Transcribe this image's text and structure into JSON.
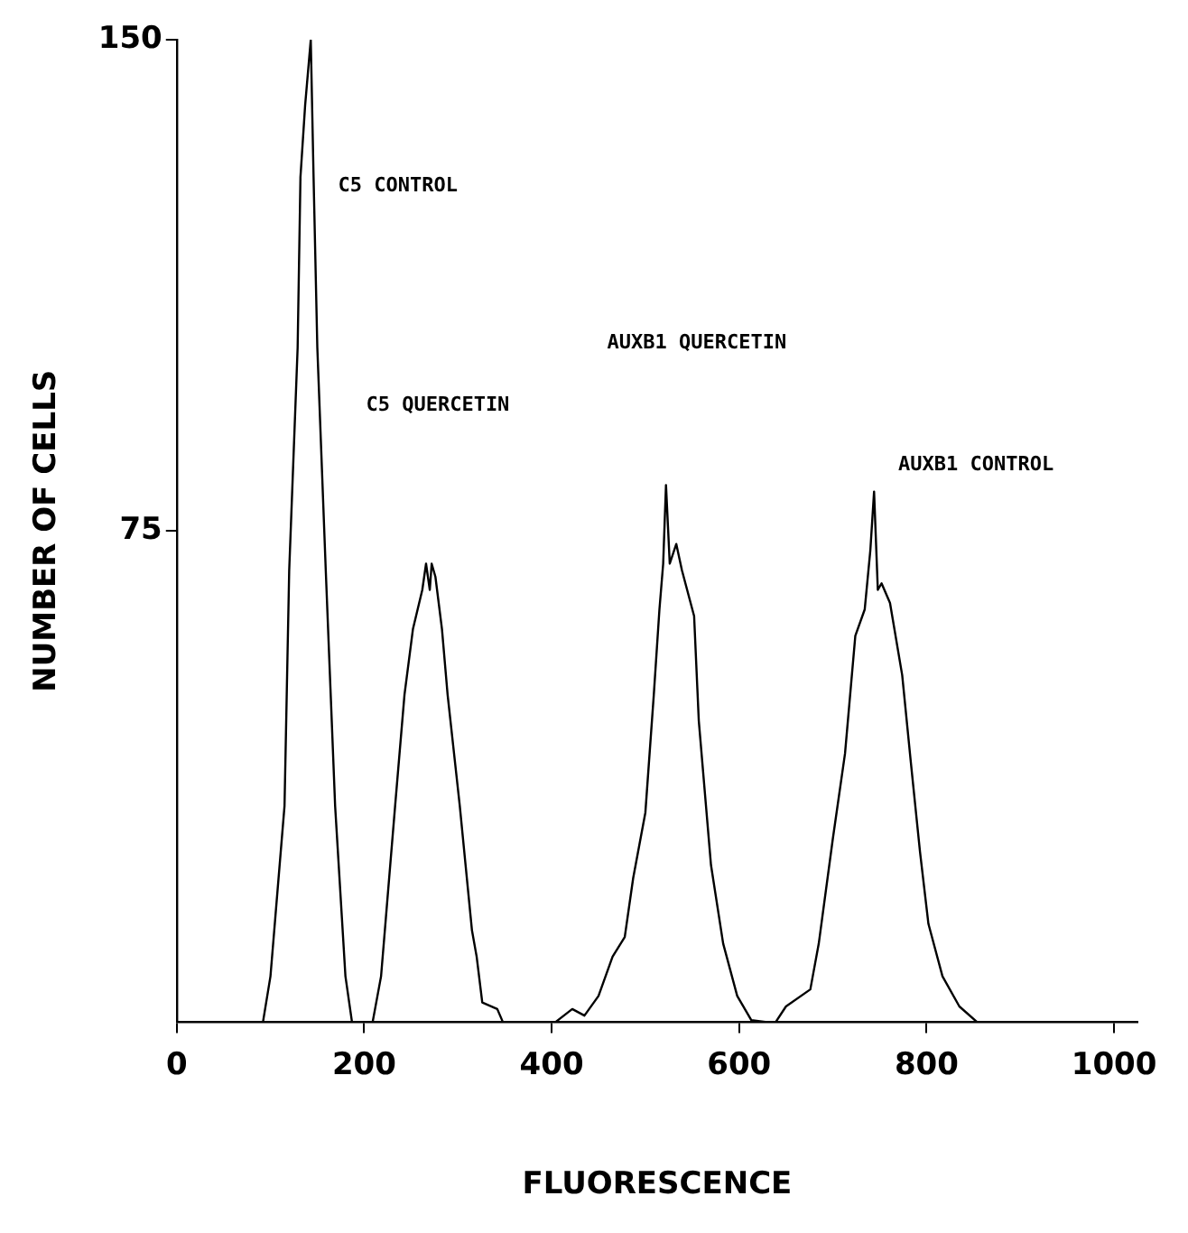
{
  "chart_data": {
    "type": "line",
    "xlabel": "FLUORESCENCE",
    "ylabel": "NUMBER OF CELLS",
    "marker": "none",
    "grid": false,
    "x": [
      0,
      92,
      100,
      115,
      120,
      129,
      132,
      137,
      143,
      146,
      150,
      159,
      169,
      180,
      187,
      209,
      218,
      233,
      243,
      252,
      262,
      266,
      270,
      272,
      276,
      283,
      289,
      302,
      315,
      320,
      326,
      342,
      348,
      404,
      422,
      435,
      450,
      465,
      478,
      487,
      500,
      509,
      515,
      519,
      522,
      526,
      533,
      539,
      552,
      557,
      570,
      583,
      598,
      613,
      630,
      639,
      650,
      676,
      685,
      700,
      713,
      724,
      734,
      740,
      744,
      748,
      752,
      761,
      774,
      783,
      793,
      802,
      817,
      835,
      854,
      1000
    ],
    "series": [
      {
        "color": "#000000",
        "values": [
          0,
          0,
          7,
          33,
          69,
          103,
          129,
          140,
          150,
          129,
          103,
          69,
          33,
          7,
          0,
          0,
          7,
          33,
          50,
          60,
          66,
          70,
          66,
          70,
          68,
          60,
          50,
          33,
          14,
          10,
          3,
          2,
          0,
          0,
          2,
          1,
          4,
          10,
          13,
          22,
          32,
          50,
          63,
          70,
          82,
          70,
          73,
          69,
          62,
          46,
          24,
          12,
          4,
          0.3,
          0,
          0,
          2.4,
          5,
          12,
          28,
          41,
          59,
          63,
          72,
          81,
          66,
          67,
          64,
          53,
          40,
          26,
          15,
          7,
          2.4,
          0,
          0
        ]
      }
    ],
    "xlim": [
      0,
      1025
    ],
    "ylim": [
      0,
      150
    ],
    "xticks": [
      0,
      200,
      400,
      600,
      800,
      1000
    ],
    "yticks": [
      75,
      150
    ],
    "annotations": [
      "C5 CONTROL",
      "C5 QUERCETIN",
      "AUXB1 QUERCETIN",
      "AUXB1 CONTROL"
    ]
  }
}
